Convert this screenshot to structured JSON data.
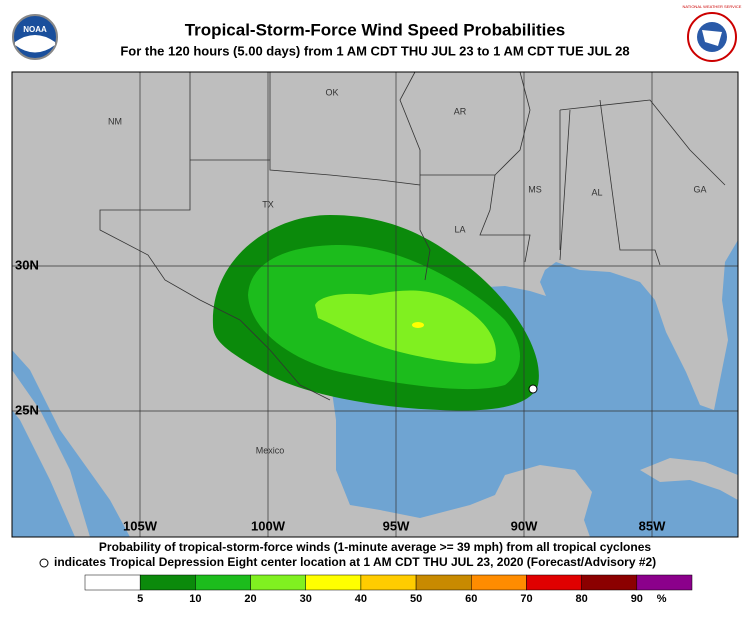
{
  "header": {
    "title": "Tropical-Storm-Force Wind Speed Probabilities",
    "subtitle": "For the 120 hours (5.00 days) from 1 AM CDT THU JUL 23 to 1 AM CDT TUE JUL 28",
    "left_logo": "NOAA",
    "right_logo": "NATIONAL WEATHER SERVICE"
  },
  "map": {
    "state_labels": [
      "NM",
      "OK",
      "AR",
      "TX",
      "LA",
      "MS",
      "AL",
      "GA",
      "Mexico"
    ],
    "lat_labels": [
      "30N",
      "25N"
    ],
    "lon_labels": [
      "105W",
      "100W",
      "95W",
      "90W",
      "85W"
    ]
  },
  "caption": {
    "line1": "Probability of tropical-storm-force winds (1-minute average >= 39 mph) from all tropical cyclones",
    "line2": "indicates Tropical Depression Eight center location at 1 AM CDT THU JUL 23, 2020 (Forecast/Advisory #2)"
  },
  "legend": {
    "colors": [
      "#ffffff",
      "#0b8a0b",
      "#1cbc1c",
      "#80f020",
      "#ffff00",
      "#ffcc00",
      "#c88a00",
      "#ff8c00",
      "#e00000",
      "#8b0000",
      "#8b008b"
    ],
    "labels": [
      5,
      10,
      20,
      30,
      40,
      50,
      60,
      70,
      80,
      90
    ],
    "unit": "%"
  }
}
